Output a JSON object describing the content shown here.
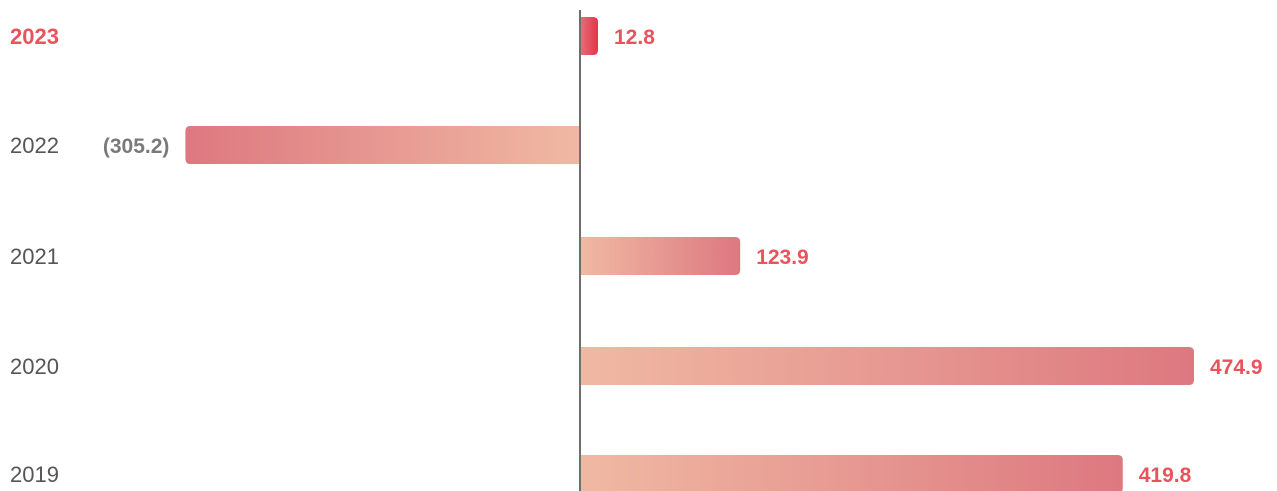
{
  "chart_data": {
    "type": "bar",
    "orientation": "horizontal",
    "categories": [
      "2023",
      "2022",
      "2021",
      "2020",
      "2019"
    ],
    "values": [
      12.8,
      -305.2,
      123.9,
      474.9,
      419.8
    ],
    "value_labels": [
      "12.8",
      "(305.2)",
      "123.9",
      "474.9",
      "419.8"
    ],
    "highlight_category": "2023",
    "xlim": [
      -305.2,
      474.9
    ],
    "grid": false,
    "zero_line": true,
    "colors": {
      "bar_dark": "#dd7880",
      "bar_light": "#f0b9a3",
      "bar_highlight_dark": "#e0364a",
      "bar_highlight_light": "#e86f7a",
      "positive_label": "#e8535c",
      "negative_label": "#7a7a7a",
      "year_label": "#555555",
      "highlight_year": "#e8535c",
      "axis_line": "#6e6e6e"
    }
  }
}
